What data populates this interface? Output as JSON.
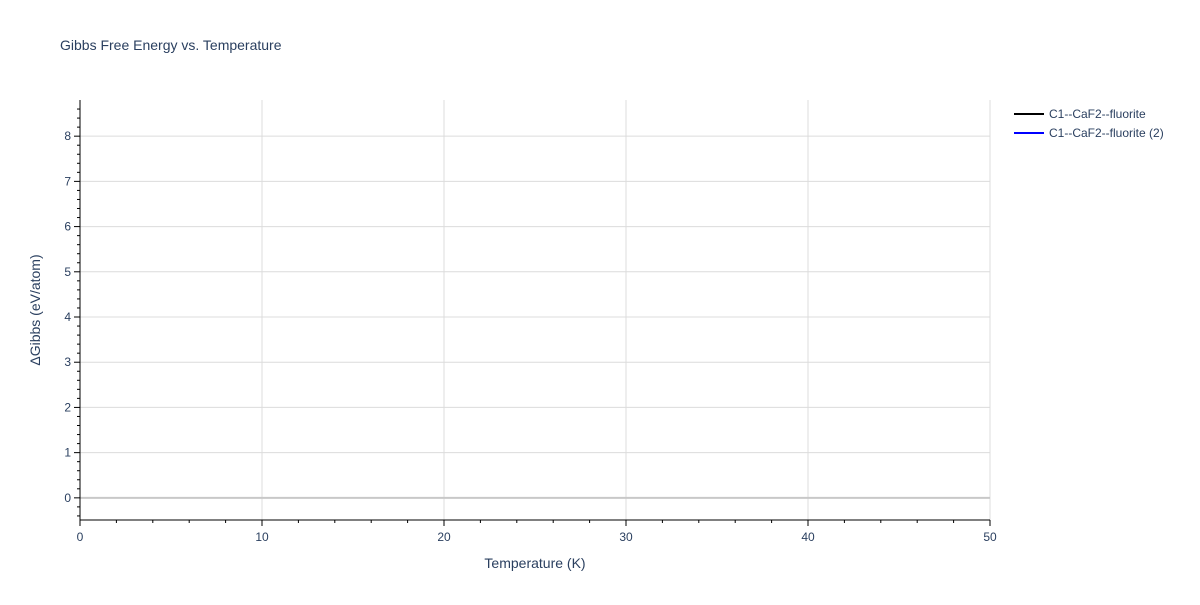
{
  "chart_data": {
    "type": "line",
    "title": "Gibbs Free Energy vs. Temperature",
    "xlabel": "Temperature (K)",
    "ylabel": "ΔGibbs (eV/atom)",
    "xlim": [
      0,
      50
    ],
    "ylim": [
      -0.49,
      8.8
    ],
    "xticks": [
      0,
      10,
      20,
      30,
      40,
      50
    ],
    "yticks": [
      0,
      1,
      2,
      3,
      4,
      5,
      6,
      7,
      8
    ],
    "grid": true,
    "legend_position": "top-right",
    "series": [
      {
        "name": "C1--CaF2--fluorite",
        "color": "#000000",
        "x": [],
        "y": []
      },
      {
        "name": "C1--CaF2--fluorite (2)",
        "color": "#0000ff",
        "x": [],
        "y": []
      }
    ]
  }
}
